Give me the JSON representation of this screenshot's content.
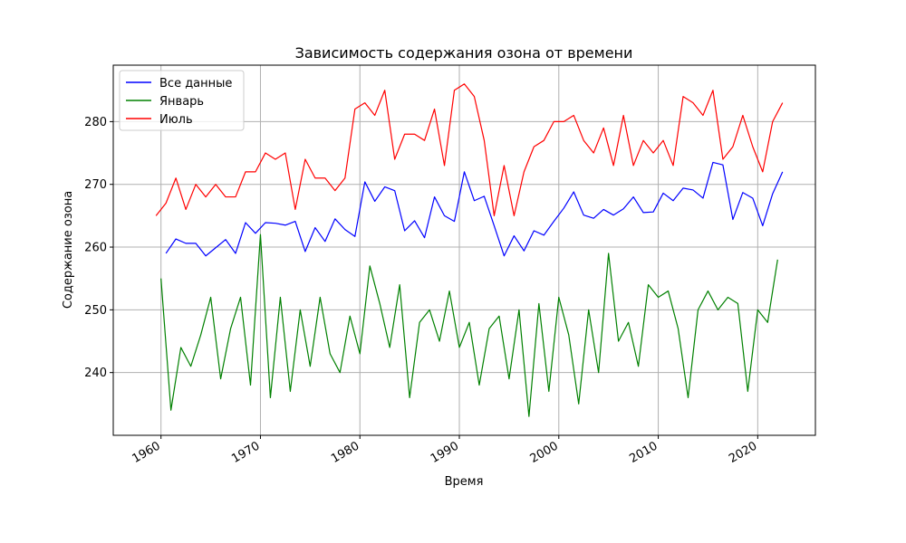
{
  "chart_data": {
    "type": "line",
    "title": "Зависимость содержания озона от времени",
    "xlabel": "Время",
    "ylabel": "Содержание озона",
    "xlim": [
      1955.2,
      2025.8
    ],
    "ylim": [
      230,
      289
    ],
    "xticks": [
      1960,
      1970,
      1980,
      1990,
      2000,
      2010,
      2020
    ],
    "yticks": [
      240,
      250,
      260,
      270,
      280
    ],
    "grid": true,
    "legend": "top-left",
    "series": [
      {
        "name": "Все данные",
        "color": "#0000ff",
        "points": [
          [
            1960.5,
            259
          ],
          [
            1961.5,
            261.3
          ],
          [
            1962.5,
            260.6
          ],
          [
            1963.5,
            260.6
          ],
          [
            1964.5,
            258.6
          ],
          [
            1965.5,
            259.9
          ],
          [
            1966.5,
            261.2
          ],
          [
            1967.5,
            259
          ],
          [
            1968.5,
            263.9
          ],
          [
            1969.5,
            262.2
          ],
          [
            1970.5,
            263.9
          ],
          [
            1971.5,
            263.8
          ],
          [
            1972.5,
            263.5
          ],
          [
            1973.5,
            264.1
          ],
          [
            1974.5,
            259.3
          ],
          [
            1975.5,
            263.1
          ],
          [
            1976.5,
            260.9
          ],
          [
            1977.5,
            264.5
          ],
          [
            1978.5,
            262.8
          ],
          [
            1979.5,
            261.7
          ],
          [
            1980.5,
            270.4
          ],
          [
            1981.5,
            267.3
          ],
          [
            1982.5,
            269.6
          ],
          [
            1983.5,
            269
          ],
          [
            1984.5,
            262.6
          ],
          [
            1985.5,
            264.2
          ],
          [
            1986.5,
            261.5
          ],
          [
            1987.5,
            268
          ],
          [
            1988.5,
            265
          ],
          [
            1989.5,
            264.1
          ],
          [
            1990.5,
            272
          ],
          [
            1991.5,
            267.4
          ],
          [
            1992.5,
            268.1
          ],
          [
            1993.5,
            263.4
          ],
          [
            1994.5,
            258.6
          ],
          [
            1995.5,
            261.8
          ],
          [
            1996.5,
            259.4
          ],
          [
            1997.5,
            262.6
          ],
          [
            1998.5,
            261.9
          ],
          [
            1999.5,
            264.1
          ],
          [
            2000.5,
            266.2
          ],
          [
            2001.5,
            268.8
          ],
          [
            2002.5,
            265.1
          ],
          [
            2003.5,
            264.6
          ],
          [
            2004.5,
            266
          ],
          [
            2005.5,
            265.1
          ],
          [
            2006.5,
            266.1
          ],
          [
            2007.5,
            268
          ],
          [
            2008.5,
            265.5
          ],
          [
            2009.5,
            265.6
          ],
          [
            2010.5,
            268.6
          ],
          [
            2011.5,
            267.4
          ],
          [
            2012.5,
            269.4
          ],
          [
            2013.5,
            269.1
          ],
          [
            2014.5,
            267.8
          ],
          [
            2015.5,
            273.5
          ],
          [
            2016.5,
            273.1
          ],
          [
            2017.5,
            264.4
          ],
          [
            2018.5,
            268.7
          ],
          [
            2019.5,
            267.8
          ],
          [
            2020.5,
            263.4
          ],
          [
            2021.5,
            268.5
          ],
          [
            2022.5,
            272
          ]
        ]
      },
      {
        "name": "Январь",
        "color": "#008000",
        "points": [
          [
            1960,
            255
          ],
          [
            1961,
            234
          ],
          [
            1962,
            244
          ],
          [
            1963,
            241
          ],
          [
            1964,
            246
          ],
          [
            1965,
            252
          ],
          [
            1966,
            239
          ],
          [
            1967,
            247
          ],
          [
            1968,
            252
          ],
          [
            1969,
            238
          ],
          [
            1970,
            262
          ],
          [
            1971,
            236
          ],
          [
            1972,
            252
          ],
          [
            1973,
            237
          ],
          [
            1974,
            250
          ],
          [
            1975,
            241
          ],
          [
            1976,
            252
          ],
          [
            1977,
            243
          ],
          [
            1978,
            240
          ],
          [
            1979,
            249
          ],
          [
            1980,
            243
          ],
          [
            1981,
            257
          ],
          [
            1982,
            251
          ],
          [
            1983,
            244
          ],
          [
            1984,
            254
          ],
          [
            1985,
            236
          ],
          [
            1986,
            248
          ],
          [
            1987,
            250
          ],
          [
            1988,
            245
          ],
          [
            1989,
            253
          ],
          [
            1990,
            244
          ],
          [
            1991,
            248
          ],
          [
            1992,
            238
          ],
          [
            1993,
            247
          ],
          [
            1994,
            249
          ],
          [
            1995,
            239
          ],
          [
            1996,
            250
          ],
          [
            1997,
            233
          ],
          [
            1998,
            251
          ],
          [
            1999,
            237
          ],
          [
            2000,
            252
          ],
          [
            2001,
            246
          ],
          [
            2002,
            235
          ],
          [
            2003,
            250
          ],
          [
            2004,
            240
          ],
          [
            2005,
            259
          ],
          [
            2006,
            245
          ],
          [
            2007,
            248
          ],
          [
            2008,
            241
          ],
          [
            2009,
            254
          ],
          [
            2010,
            252
          ],
          [
            2011,
            253
          ],
          [
            2012,
            247
          ],
          [
            2013,
            236
          ],
          [
            2014,
            250
          ],
          [
            2015,
            253
          ],
          [
            2016,
            250
          ],
          [
            2017,
            252
          ],
          [
            2018,
            251
          ],
          [
            2019,
            237
          ],
          [
            2020,
            250
          ],
          [
            2021,
            248
          ],
          [
            2022,
            258
          ]
        ]
      },
      {
        "name": "Июль",
        "color": "#ff0000",
        "points": [
          [
            1959.5,
            265
          ],
          [
            1960.5,
            267
          ],
          [
            1961.5,
            271
          ],
          [
            1962.5,
            266
          ],
          [
            1963.5,
            270
          ],
          [
            1964.5,
            268
          ],
          [
            1965.5,
            270
          ],
          [
            1966.5,
            268
          ],
          [
            1967.5,
            268
          ],
          [
            1968.5,
            272
          ],
          [
            1969.5,
            272
          ],
          [
            1970.5,
            275
          ],
          [
            1971.5,
            274
          ],
          [
            1972.5,
            275
          ],
          [
            1973.5,
            266
          ],
          [
            1974.5,
            274
          ],
          [
            1975.5,
            271
          ],
          [
            1976.5,
            271
          ],
          [
            1977.5,
            269
          ],
          [
            1978.5,
            271
          ],
          [
            1979.5,
            282
          ],
          [
            1980.5,
            283
          ],
          [
            1981.5,
            281
          ],
          [
            1982.5,
            285
          ],
          [
            1983.5,
            274
          ],
          [
            1984.5,
            278
          ],
          [
            1985.5,
            278
          ],
          [
            1986.5,
            277
          ],
          [
            1987.5,
            282
          ],
          [
            1988.5,
            273
          ],
          [
            1989.5,
            285
          ],
          [
            1990.5,
            286
          ],
          [
            1991.5,
            284
          ],
          [
            1992.5,
            277
          ],
          [
            1993.5,
            265
          ],
          [
            1994.5,
            273
          ],
          [
            1995.5,
            265
          ],
          [
            1996.5,
            272
          ],
          [
            1997.5,
            276
          ],
          [
            1998.5,
            277
          ],
          [
            1999.5,
            280
          ],
          [
            2000.5,
            280
          ],
          [
            2001.5,
            281
          ],
          [
            2002.5,
            277
          ],
          [
            2003.5,
            275
          ],
          [
            2004.5,
            279
          ],
          [
            2005.5,
            273
          ],
          [
            2006.5,
            281
          ],
          [
            2007.5,
            273
          ],
          [
            2008.5,
            277
          ],
          [
            2009.5,
            275
          ],
          [
            2010.5,
            277
          ],
          [
            2011.5,
            273
          ],
          [
            2012.5,
            284
          ],
          [
            2013.5,
            283
          ],
          [
            2014.5,
            281
          ],
          [
            2015.5,
            285
          ],
          [
            2016.5,
            274
          ],
          [
            2017.5,
            276
          ],
          [
            2018.5,
            281
          ],
          [
            2019.5,
            276
          ],
          [
            2020.5,
            272
          ],
          [
            2021.5,
            280
          ],
          [
            2022.5,
            283
          ]
        ]
      }
    ]
  }
}
